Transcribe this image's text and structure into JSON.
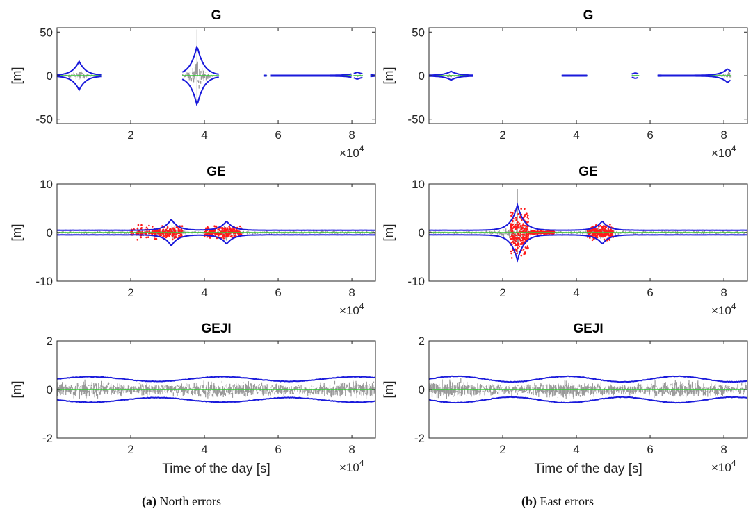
{
  "chart_data": [
    {
      "panel": "a",
      "subplots": [
        {
          "type": "scatter",
          "title": "G",
          "ylabel": "[m]",
          "xlim": [
            0,
            86400
          ],
          "ylim": [
            -55,
            55
          ],
          "yticks": [
            -50,
            0,
            50
          ],
          "xticks": [
            20000,
            40000,
            60000,
            80000
          ],
          "xtick_labels": [
            "2",
            "4",
            "6",
            "8"
          ],
          "x_multiplier": "×10",
          "x_multiplier_exp": "4",
          "colors": {
            "scatter": "#999999",
            "bound": "#1a1adb",
            "outlier": "#ff1a1a",
            "mean": "#33cc33"
          },
          "segments": [
            [
              0,
              12000
            ],
            [
              34000,
              44000
            ],
            [
              56000,
              57000
            ],
            [
              58000,
              80000
            ],
            [
              80500,
              83000
            ],
            [
              85000,
              86400
            ]
          ],
          "spikes": [
            {
              "x": 6000,
              "amp": 17
            },
            {
              "x": 38000,
              "amp": 36,
              "peak": 53
            },
            {
              "x": 81500,
              "amp": 4
            }
          ],
          "base_amp": 0.4,
          "noise": 0.3
        },
        {
          "type": "scatter",
          "title": "GE",
          "ylabel": "[m]",
          "xlim": [
            0,
            86400
          ],
          "ylim": [
            -10,
            10
          ],
          "yticks": [
            -10,
            0,
            10
          ],
          "xticks": [
            20000,
            40000,
            60000,
            80000
          ],
          "xtick_labels": [
            "2",
            "4",
            "6",
            "8"
          ],
          "x_multiplier": "×10",
          "x_multiplier_exp": "4",
          "colors": {
            "scatter": "#999999",
            "bound": "#1a1adb",
            "outlier": "#ff1a1a",
            "mean": "#33cc33"
          },
          "segments": [
            [
              0,
              86400
            ]
          ],
          "spikes": [
            {
              "x": 31000,
              "amp": 2.4
            },
            {
              "x": 46000,
              "amp": 2.0
            }
          ],
          "base_amp": 0.5,
          "noise": 0.6,
          "outlier_ranges": [
            [
              20000,
              34000,
              2.5
            ],
            [
              40000,
              50000,
              2.6
            ]
          ]
        },
        {
          "type": "scatter",
          "title": "GEJI",
          "ylabel": "[m]",
          "xlabel": "Time of the day [s]",
          "xlim": [
            0,
            86400
          ],
          "ylim": [
            -2,
            2
          ],
          "yticks": [
            -2,
            0,
            2
          ],
          "xticks": [
            20000,
            40000,
            60000,
            80000
          ],
          "xtick_labels": [
            "2",
            "4",
            "6",
            "8"
          ],
          "x_multiplier": "×10",
          "x_multiplier_exp": "4",
          "colors": {
            "scatter": "#999999",
            "bound": "#1a1adb",
            "outlier": "#ff1a1a",
            "mean": "#33cc33"
          },
          "segments": [
            [
              0,
              86400
            ]
          ],
          "spikes": [],
          "base_amp": 0.45,
          "noise": 0.5,
          "wave": {
            "amp": 0.1,
            "period": 36000
          }
        }
      ]
    },
    {
      "panel": "b",
      "subplots": [
        {
          "type": "scatter",
          "title": "G",
          "ylabel": "[m]",
          "xlim": [
            0,
            86400
          ],
          "ylim": [
            -55,
            55
          ],
          "yticks": [
            -50,
            0,
            50
          ],
          "xticks": [
            20000,
            40000,
            60000,
            80000
          ],
          "xtick_labels": [
            "2",
            "4",
            "6",
            "8"
          ],
          "x_multiplier": "×10",
          "x_multiplier_exp": "4",
          "colors": {
            "scatter": "#999999",
            "bound": "#1a1adb",
            "outlier": "#ff1a1a",
            "mean": "#33cc33"
          },
          "segments": [
            [
              0,
              12000
            ],
            [
              36000,
              43000
            ],
            [
              55000,
              57000
            ],
            [
              62000,
              82000
            ]
          ],
          "spikes": [
            {
              "x": 6000,
              "amp": 5
            },
            {
              "x": 56000,
              "amp": 3
            },
            {
              "x": 81000,
              "amp": 8
            }
          ],
          "base_amp": 0.4,
          "noise": 0.3
        },
        {
          "type": "scatter",
          "title": "GE",
          "ylabel": "[m]",
          "xlim": [
            0,
            86400
          ],
          "ylim": [
            -10,
            10
          ],
          "yticks": [
            -10,
            0,
            10
          ],
          "xticks": [
            20000,
            40000,
            60000,
            80000
          ],
          "xtick_labels": [
            "2",
            "4",
            "6",
            "8"
          ],
          "x_multiplier": "×10",
          "x_multiplier_exp": "4",
          "colors": {
            "scatter": "#999999",
            "bound": "#1a1adb",
            "outlier": "#ff1a1a",
            "mean": "#33cc33"
          },
          "segments": [
            [
              0,
              86400
            ]
          ],
          "spikes": [
            {
              "x": 24000,
              "amp": 5.5,
              "peak": 9
            },
            {
              "x": 47000,
              "amp": 2.0
            }
          ],
          "base_amp": 0.5,
          "noise": 0.6,
          "outlier_ranges": [
            [
              22000,
              27000,
              9
            ],
            [
              27000,
              34000,
              0.6
            ],
            [
              43000,
              50000,
              2.8
            ]
          ]
        },
        {
          "type": "scatter",
          "title": "GEJI",
          "ylabel": "[m]",
          "xlabel": "Time of the day [s]",
          "xlim": [
            0,
            86400
          ],
          "ylim": [
            -2,
            2
          ],
          "yticks": [
            -2,
            0,
            2
          ],
          "xticks": [
            20000,
            40000,
            60000,
            80000
          ],
          "xtick_labels": [
            "2",
            "4",
            "6",
            "8"
          ],
          "x_multiplier": "×10",
          "x_multiplier_exp": "4",
          "colors": {
            "scatter": "#999999",
            "bound": "#1a1adb",
            "outlier": "#ff1a1a",
            "mean": "#33cc33"
          },
          "segments": [
            [
              0,
              86400
            ]
          ],
          "spikes": [],
          "base_amp": 0.45,
          "noise": 0.55,
          "wave": {
            "amp": 0.12,
            "period": 30000
          }
        }
      ]
    }
  ],
  "captions": {
    "a": {
      "label": "(a)",
      "text": " North errors"
    },
    "b": {
      "label": "(b)",
      "text": " East errors"
    }
  }
}
